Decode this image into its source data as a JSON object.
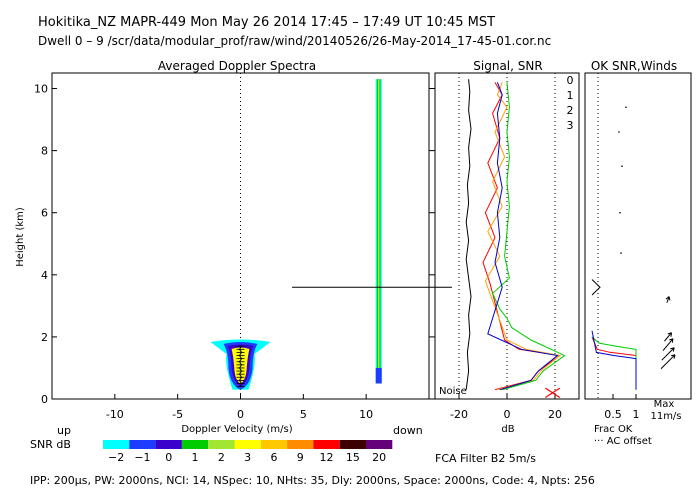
{
  "header": {
    "line1": "Hokitika_NZ  MAPR-449  Mon May 26 2014 17:45 – 17:49 UT 10:45 MST",
    "line2": "Dwell  0 –  9   /scr/data/modular_prof/raw/wind/20140526/26-May-2014_17-45-01.cor.nc"
  },
  "footer": {
    "params": "IPP: 200μs,  PW: 2000ns,  NCI:  14,  NSpec: 10, NHts: 35,  Dly: 2000ns,  Space: 2000ns,  Code: 4,  Npts: 256",
    "filter": "FCA Filter B2  5m/s"
  },
  "colors": {
    "n2": "#00ffff",
    "n1": "#1e3cff",
    "p0": "#3a00cc",
    "p1": "#00cc00",
    "p2": "#a0e632",
    "p3": "#ffff00",
    "p6": "#ffc800",
    "p9": "#ff8c00",
    "p12": "#ff0000",
    "p15": "#3c0000",
    "p20": "#640078",
    "ch0": "#ff0000",
    "ch1": "#ffa000",
    "ch2": "#00cc00",
    "ch3": "#0000cc"
  },
  "chart_data": [
    {
      "type": "heatmap",
      "title": "Averaged Doppler Spectra",
      "xlabel": "Doppler Velocity (m/s)",
      "ylabel": "Height (km)",
      "xlim": [
        -15,
        15
      ],
      "ylim": [
        0,
        10.5
      ],
      "xticks": [
        -10,
        -5,
        0,
        5,
        10
      ],
      "yticks": [
        0,
        2,
        4,
        6,
        8,
        10
      ],
      "x_end_labels": {
        "left": "up",
        "right": "down"
      },
      "features": [
        {
          "name": "boundary-layer echo",
          "center_velocity": 0,
          "height_range": [
            0.3,
            1.9
          ],
          "peak_snr_db": 6
        },
        {
          "name": "ground clutter strip",
          "velocity": 11,
          "height_range": [
            0.5,
            10.3
          ],
          "peak_snr_db": 3
        }
      ],
      "marker_height_km": 3.6,
      "colorbar": {
        "label": "SNR dB",
        "ticks": [
          "−2",
          "−1",
          "0",
          "1",
          "2",
          "3",
          "6",
          "9",
          "12",
          "15",
          "20"
        ]
      }
    },
    {
      "type": "line",
      "title": "Signal, SNR",
      "xlabel": "dB",
      "xlim": [
        -30,
        30
      ],
      "ylim": [
        0,
        10.5
      ],
      "xticks": [
        -20,
        0,
        20
      ],
      "legend": [
        "0",
        "1",
        "2",
        "3"
      ],
      "noise_label": "Noise",
      "series": [
        {
          "name": "Noise",
          "x": [
            -17,
            -16,
            -16.5,
            -15.5,
            -16,
            -15,
            -16,
            -17,
            -16,
            -17,
            -16,
            -16.5,
            -15.5,
            -16,
            -15,
            -16,
            -15.5,
            -16
          ],
          "y": [
            0.3,
            0.9,
            1.5,
            2.1,
            2.7,
            3.3,
            3.9,
            4.5,
            5.1,
            5.7,
            6.3,
            6.9,
            7.5,
            8.1,
            8.7,
            9.3,
            9.9,
            10.3
          ]
        },
        {
          "name": "0",
          "x": [
            -5,
            10,
            13,
            22,
            5,
            -1,
            -7,
            -10,
            -5,
            -9,
            -4,
            -8,
            -3,
            -6,
            -2,
            -5
          ],
          "y": [
            0.3,
            0.6,
            0.9,
            1.4,
            1.6,
            1.9,
            3.7,
            4.4,
            5.2,
            6.0,
            6.8,
            7.6,
            8.4,
            9.2,
            9.8,
            10.2
          ]
        },
        {
          "name": "1",
          "x": [
            -4,
            11,
            14,
            22,
            8,
            0,
            -9,
            -3,
            -8,
            -2,
            -6,
            -1,
            -5,
            0,
            -4,
            -2
          ],
          "y": [
            0.3,
            0.6,
            0.9,
            1.4,
            1.6,
            1.9,
            3.8,
            4.6,
            5.4,
            6.2,
            7.0,
            7.8,
            8.6,
            9.4,
            9.8,
            10.2
          ]
        },
        {
          "name": "2",
          "x": [
            -2,
            12,
            15,
            24,
            10,
            2,
            0,
            -3,
            -6,
            1,
            -1,
            0,
            1,
            0,
            1,
            0,
            1,
            0
          ],
          "y": [
            0.3,
            0.6,
            0.9,
            1.4,
            1.9,
            2.3,
            2.6,
            2.9,
            3.4,
            3.9,
            4.6,
            5.4,
            6.2,
            7.0,
            7.8,
            8.6,
            9.4,
            10.2
          ]
        },
        {
          "name": "3",
          "x": [
            -3,
            10,
            13,
            21,
            6,
            -8,
            -2,
            -5,
            -3,
            -4,
            -2,
            -4,
            -3,
            -4,
            -2,
            -4
          ],
          "y": [
            0.3,
            0.6,
            0.9,
            1.4,
            1.6,
            2.1,
            3.6,
            4.4,
            5.2,
            6.0,
            6.8,
            7.6,
            8.4,
            9.2,
            9.8,
            10.2
          ]
        }
      ]
    },
    {
      "type": "line",
      "title": "OK SNR,Winds",
      "xlim": [
        0,
        1.2
      ],
      "ylim": [
        0,
        10.5
      ],
      "xticks": [
        "0.5",
        "1"
      ],
      "xlabel_lines": [
        "Frac OK",
        "··· AC offset"
      ],
      "max_wind_label": [
        "Max",
        "11m/s"
      ],
      "series": [
        {
          "name": "Frac OK 0",
          "x": [
            0,
            0.12,
            0.42,
            1.0,
            1.0
          ],
          "y": [
            2.0,
            1.6,
            1.5,
            1.4,
            0.3
          ]
        },
        {
          "name": "Frac OK 2",
          "x": [
            0,
            0.16,
            0.55,
            1.0,
            1.0
          ],
          "y": [
            2.0,
            1.8,
            1.7,
            1.6,
            0.3
          ]
        },
        {
          "name": "Frac OK 3",
          "x": [
            0,
            0.1,
            0.5,
            1.0,
            1.0
          ],
          "y": [
            2.2,
            1.5,
            1.4,
            1.3,
            0.3
          ]
        }
      ],
      "winds": [
        {
          "height": 1.2,
          "speed_ms": 9,
          "dir_deg": 225
        },
        {
          "height": 1.45,
          "speed_ms": 8,
          "dir_deg": 225
        },
        {
          "height": 1.75,
          "speed_ms": 7,
          "dir_deg": 220
        },
        {
          "height": 2.0,
          "speed_ms": 5,
          "dir_deg": 220
        },
        {
          "height": 3.2,
          "speed_ms": 3,
          "dir_deg": 200
        }
      ]
    }
  ]
}
